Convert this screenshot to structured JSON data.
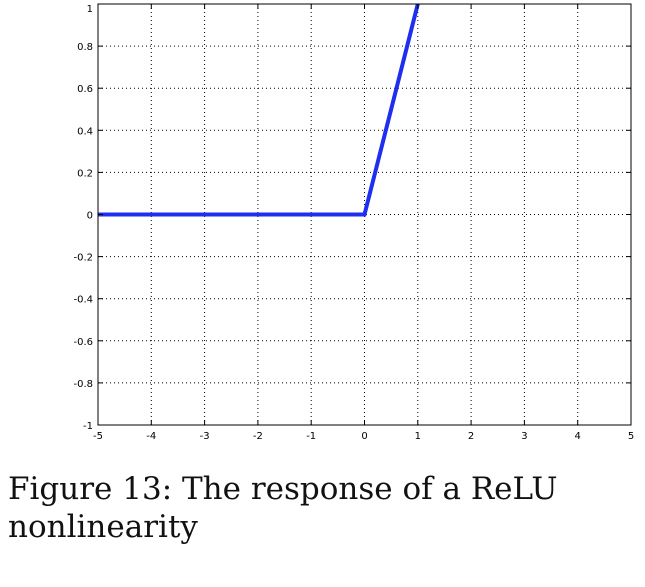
{
  "caption": "Figure 13: The response of a ReLU nonlinearity",
  "colors": {
    "line": "#1f2ff0",
    "grid": "#000000",
    "axes": "#000000"
  },
  "chart_data": {
    "type": "line",
    "title": "",
    "xlabel": "",
    "ylabel": "",
    "xlim": [
      -5,
      5
    ],
    "ylim": [
      -1,
      1
    ],
    "xticks": [
      -5,
      -4,
      -3,
      -2,
      -1,
      0,
      1,
      2,
      3,
      4,
      5
    ],
    "yticks": [
      -1,
      -0.8,
      -0.6,
      -0.4,
      -0.2,
      0,
      0.2,
      0.4,
      0.6,
      0.8,
      1
    ],
    "xtick_labels": [
      "-5",
      "-4",
      "-3",
      "-2",
      "-1",
      "0",
      "1",
      "2",
      "3",
      "4",
      "5"
    ],
    "ytick_labels": [
      "-1",
      "-0.8",
      "-0.6",
      "-0.4",
      "-0.2",
      "0",
      "0.2",
      "0.4",
      "0.6",
      "0.8",
      "1"
    ],
    "grid": true,
    "grid_style": "dotted",
    "series": [
      {
        "x": [
          -5,
          0,
          1
        ],
        "y": [
          0,
          0,
          1
        ]
      }
    ]
  }
}
